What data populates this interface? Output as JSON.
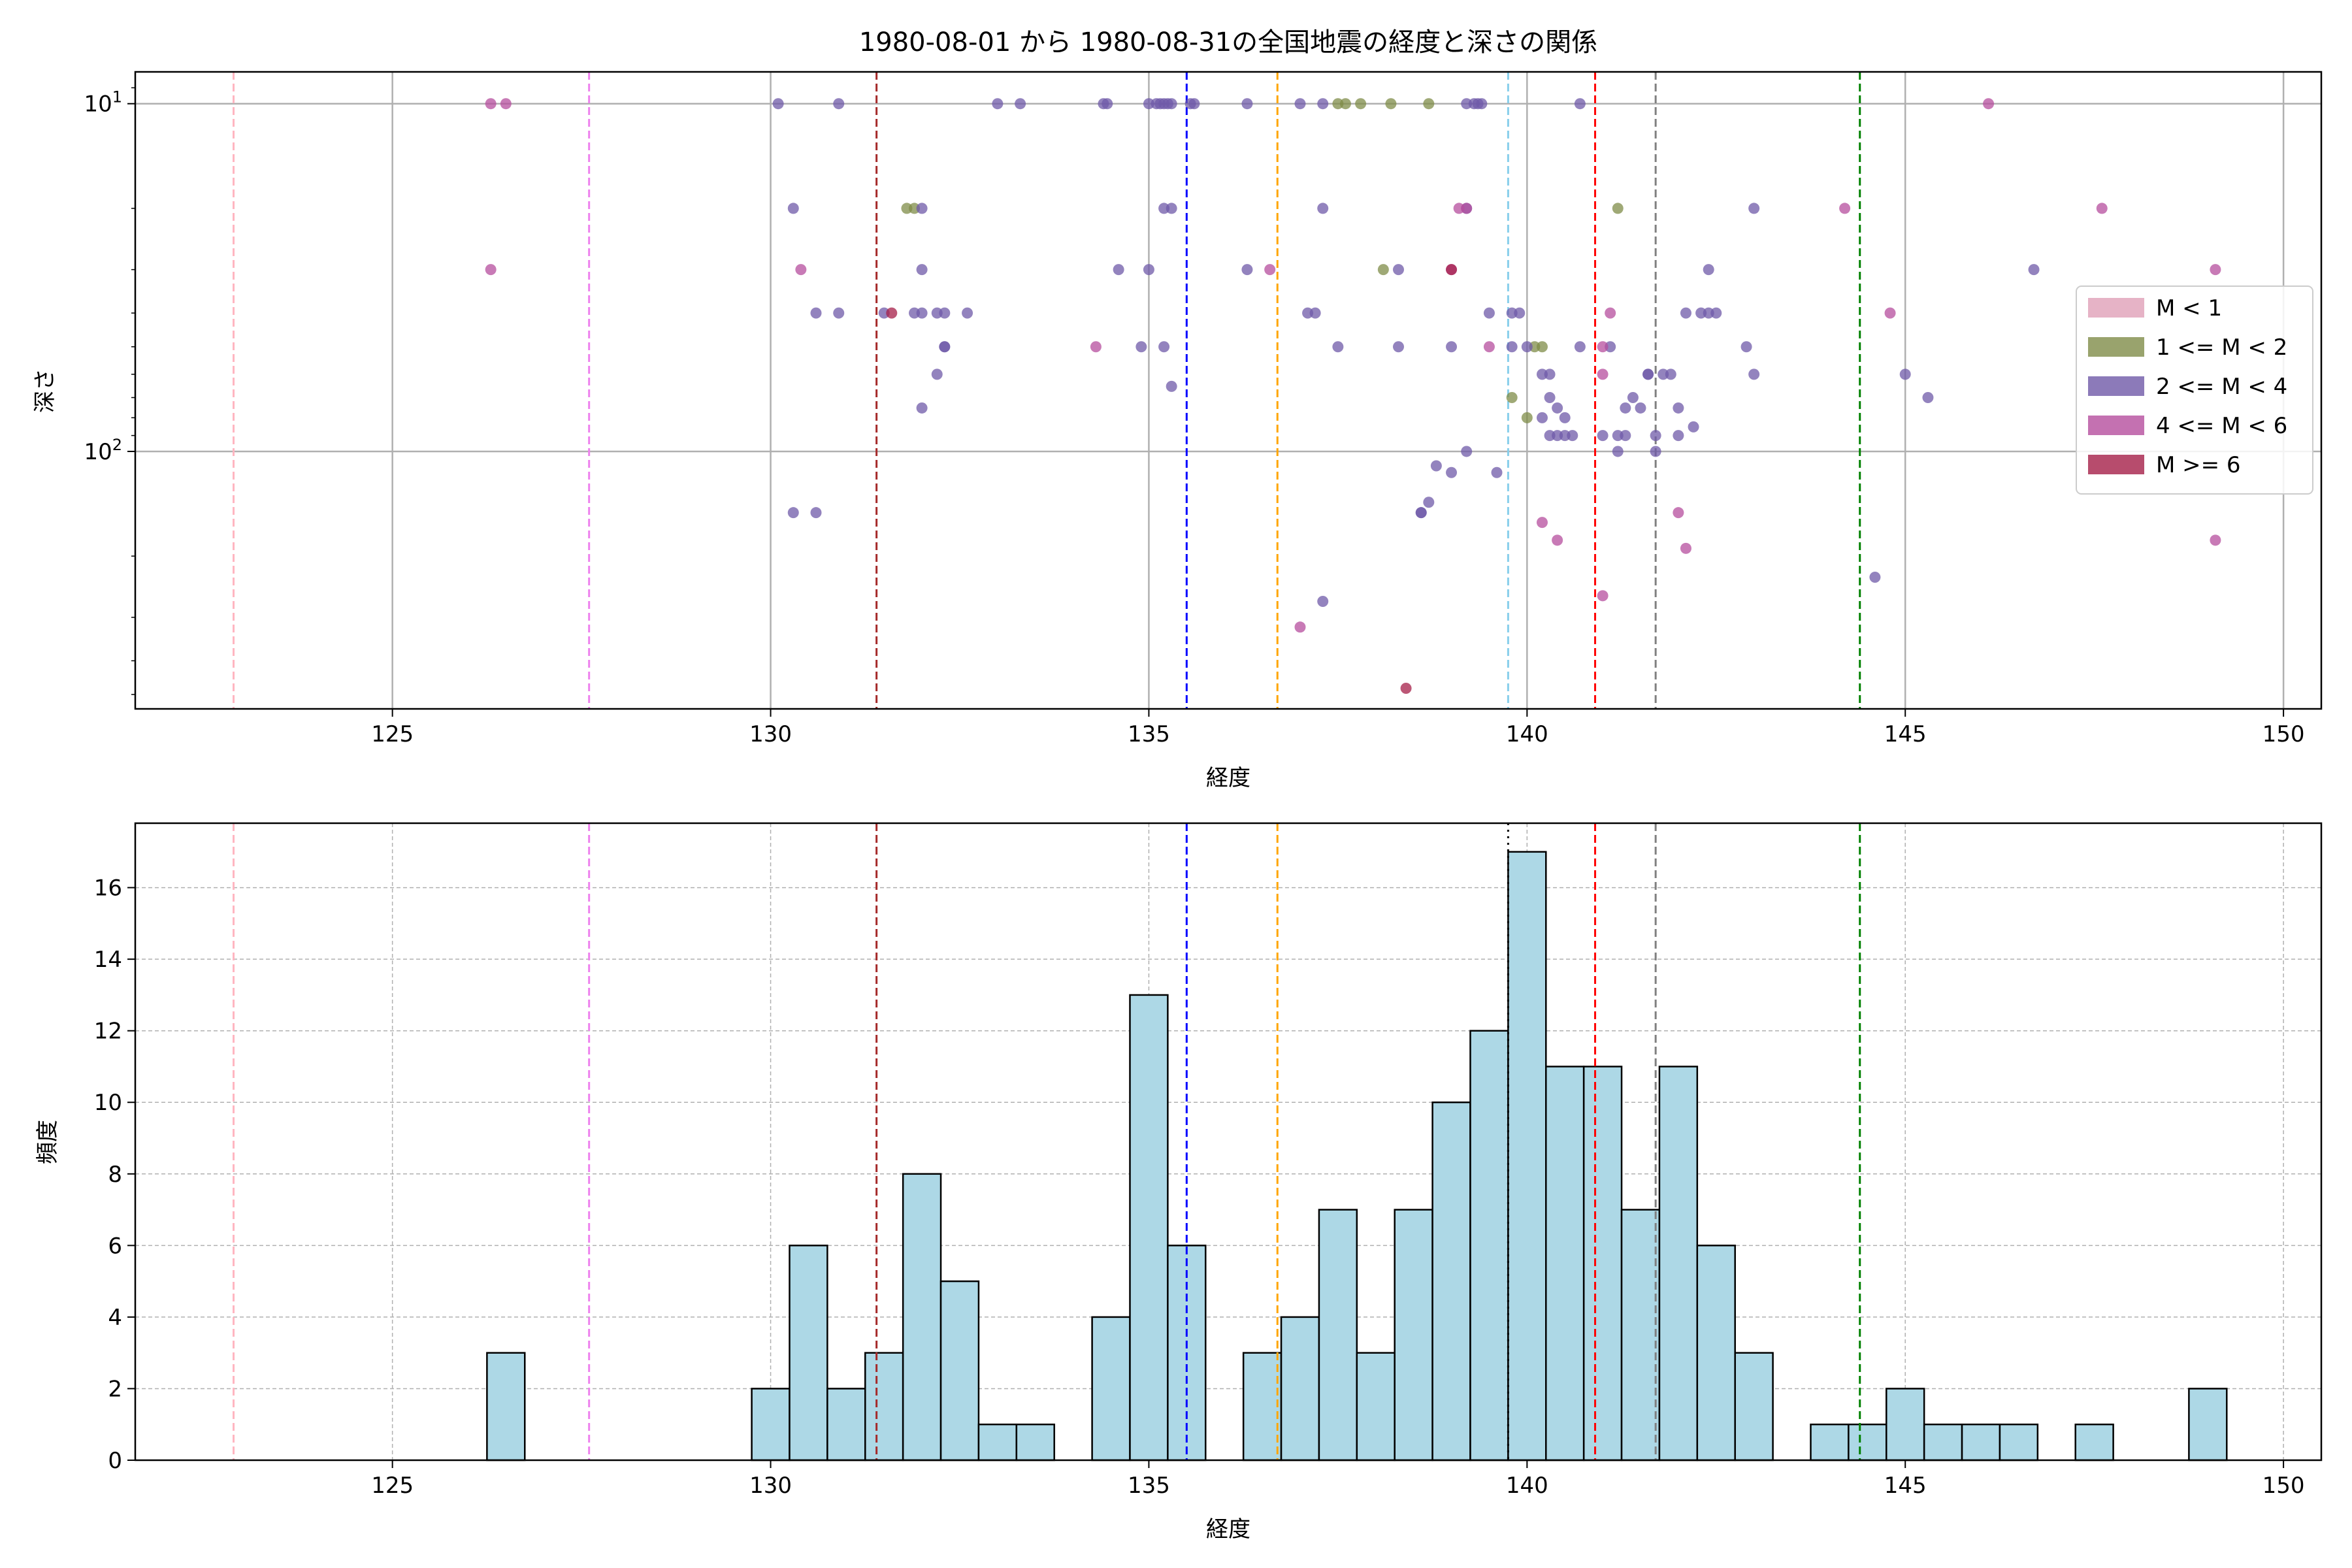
{
  "title": "1980-08-01 から 1980-08-31の全国地震の経度と深さの関係",
  "colors": {
    "mag_lt1": "#e0a0b8",
    "mag_1_2": "#7f8c48",
    "mag_2_4": "#6f59a8",
    "mag_4_6": "#b54d9e",
    "mag_ge6": "#a51f48",
    "hist_fill": "#add8e6"
  },
  "chart_data": [
    {
      "type": "scatter",
      "xlabel": "経度",
      "ylabel": "深さ",
      "xlim": [
        121.6,
        150.5
      ],
      "x_ticks": [
        125,
        130,
        135,
        140,
        145,
        150
      ],
      "x_tick_labels": [
        "125",
        "130",
        "135",
        "140",
        "145",
        "150"
      ],
      "y_scale": "log",
      "y_inverted": true,
      "ylim": [
        8.1,
        550
      ],
      "y_ticks": [
        10,
        100
      ],
      "y_tick_bases": [
        "10",
        "10"
      ],
      "y_tick_exps": [
        "1",
        "2"
      ],
      "grid": true,
      "legend_position": "center-right",
      "legend": [
        {
          "label": "M < 1",
          "color": "#e0a0b8"
        },
        {
          "label": "1 <= M < 2",
          "color": "#7f8c48"
        },
        {
          "label": "2 <= M < 4",
          "color": "#6f59a8"
        },
        {
          "label": "4 <= M < 6",
          "color": "#b54d9e"
        },
        {
          "label": "M >= 6",
          "color": "#a51f48"
        }
      ],
      "vertical_lines": [
        {
          "x": 122.9,
          "color": "#ffb6c1"
        },
        {
          "x": 127.6,
          "color": "#ee82ee"
        },
        {
          "x": 131.4,
          "color": "#a52a2a"
        },
        {
          "x": 135.5,
          "color": "#0000ff"
        },
        {
          "x": 136.7,
          "color": "#ffa500"
        },
        {
          "x": 139.75,
          "color": "#87ceeb"
        },
        {
          "x": 140.9,
          "color": "#ff0000"
        },
        {
          "x": 141.7,
          "color": "#808080"
        },
        {
          "x": 144.4,
          "color": "#008000"
        }
      ],
      "series": [
        {
          "name": "1 <= M < 2",
          "color": "#7f8c48",
          "points": [
            [
              131.8,
              20
            ],
            [
              131.9,
              20
            ],
            [
              137.5,
              10
            ],
            [
              137.6,
              10
            ],
            [
              137.8,
              10
            ],
            [
              138.2,
              10
            ],
            [
              138.7,
              10
            ],
            [
              138.1,
              30
            ],
            [
              139.8,
              70
            ],
            [
              140.2,
              50
            ],
            [
              140.0,
              80
            ],
            [
              140.1,
              50
            ],
            [
              141.2,
              20
            ]
          ]
        },
        {
          "name": "2 <= M < 4",
          "color": "#6f59a8",
          "points": [
            [
              130.1,
              10
            ],
            [
              130.9,
              10
            ],
            [
              133.0,
              10
            ],
            [
              133.3,
              10
            ],
            [
              134.4,
              10
            ],
            [
              134.45,
              10
            ],
            [
              135.0,
              10
            ],
            [
              135.1,
              10
            ],
            [
              135.15,
              10
            ],
            [
              135.2,
              10
            ],
            [
              135.25,
              10
            ],
            [
              135.3,
              10
            ],
            [
              135.55,
              10
            ],
            [
              135.6,
              10
            ],
            [
              136.3,
              10
            ],
            [
              137.0,
              10
            ],
            [
              137.3,
              10
            ],
            [
              139.2,
              10
            ],
            [
              139.3,
              10
            ],
            [
              139.35,
              10
            ],
            [
              139.4,
              10
            ],
            [
              140.7,
              10
            ],
            [
              130.3,
              20
            ],
            [
              132.0,
              20
            ],
            [
              135.2,
              20
            ],
            [
              135.3,
              20
            ],
            [
              137.3,
              20
            ],
            [
              139.2,
              20
            ],
            [
              143.0,
              20
            ],
            [
              130.6,
              40
            ],
            [
              130.9,
              40
            ],
            [
              131.5,
              40
            ],
            [
              131.9,
              40
            ],
            [
              132.0,
              40
            ],
            [
              132.2,
              40
            ],
            [
              132.3,
              40
            ],
            [
              132.6,
              40
            ],
            [
              132.0,
              30
            ],
            [
              134.6,
              30
            ],
            [
              135.0,
              30
            ],
            [
              136.3,
              30
            ],
            [
              137.1,
              40
            ],
            [
              137.2,
              40
            ],
            [
              138.3,
              30
            ],
            [
              139.5,
              40
            ],
            [
              139.8,
              40
            ],
            [
              139.9,
              40
            ],
            [
              142.4,
              40
            ],
            [
              142.5,
              40
            ],
            [
              142.3,
              40
            ],
            [
              142.1,
              40
            ],
            [
              142.4,
              30
            ],
            [
              142.9,
              50
            ],
            [
              143.0,
              60
            ],
            [
              146.7,
              30
            ],
            [
              134.9,
              50
            ],
            [
              135.2,
              50
            ],
            [
              132.2,
              60
            ],
            [
              132.3,
              50
            ],
            [
              132.3,
              50
            ],
            [
              135.3,
              65
            ],
            [
              137.5,
              50
            ],
            [
              138.3,
              50
            ],
            [
              139.0,
              50
            ],
            [
              139.8,
              50
            ],
            [
              140.0,
              50
            ],
            [
              140.2,
              60
            ],
            [
              140.3,
              60
            ],
            [
              140.3,
              70
            ],
            [
              140.4,
              75
            ],
            [
              140.5,
              80
            ],
            [
              140.5,
              90
            ],
            [
              140.7,
              50
            ],
            [
              141.1,
              50
            ],
            [
              141.4,
              70
            ],
            [
              141.6,
              60
            ],
            [
              141.8,
              60
            ],
            [
              141.3,
              75
            ],
            [
              141.5,
              75
            ],
            [
              141.6,
              60
            ],
            [
              141.9,
              60
            ],
            [
              142.0,
              75
            ],
            [
              142.2,
              85
            ],
            [
              132.0,
              75
            ],
            [
              139.2,
              100
            ],
            [
              138.8,
              110
            ],
            [
              139.0,
              115
            ],
            [
              138.6,
              150
            ],
            [
              138.7,
              140
            ],
            [
              138.6,
              150
            ],
            [
              139.6,
              115
            ],
            [
              140.3,
              90
            ],
            [
              140.2,
              80
            ],
            [
              140.4,
              90
            ],
            [
              140.6,
              90
            ],
            [
              141.2,
              90
            ],
            [
              141.3,
              90
            ],
            [
              141.0,
              90
            ],
            [
              141.2,
              100
            ],
            [
              141.7,
              100
            ],
            [
              141.7,
              90
            ],
            [
              142.0,
              90
            ],
            [
              145.0,
              60
            ],
            [
              145.3,
              70
            ],
            [
              130.3,
              150
            ],
            [
              130.6,
              150
            ],
            [
              137.3,
              270
            ],
            [
              144.6,
              230
            ]
          ]
        },
        {
          "name": "4 <= M < 6",
          "color": "#b54d9e",
          "points": [
            [
              126.3,
              10
            ],
            [
              126.5,
              10
            ],
            [
              146.1,
              10
            ],
            [
              126.3,
              30
            ],
            [
              130.4,
              30
            ],
            [
              136.6,
              30
            ],
            [
              134.3,
              50
            ],
            [
              139.0,
              30
            ],
            [
              144.2,
              20
            ],
            [
              147.6,
              20
            ],
            [
              149.1,
              30
            ],
            [
              144.8,
              40
            ],
            [
              139.1,
              20
            ],
            [
              139.2,
              20
            ],
            [
              139.5,
              50
            ],
            [
              141.1,
              40
            ],
            [
              141.0,
              50
            ],
            [
              141.0,
              60
            ],
            [
              140.2,
              160
            ],
            [
              140.4,
              180
            ],
            [
              142.0,
              150
            ],
            [
              142.1,
              190
            ],
            [
              149.1,
              180
            ],
            [
              141.0,
              260
            ],
            [
              137.0,
              320
            ]
          ]
        },
        {
          "name": "M >= 6",
          "color": "#a51f48",
          "points": [
            [
              131.6,
              40
            ],
            [
              139.0,
              30
            ],
            [
              138.4,
              480
            ]
          ]
        }
      ]
    },
    {
      "type": "bar",
      "subtype": "histogram",
      "xlabel": "経度",
      "ylabel": "頻度",
      "xlim": [
        121.6,
        150.5
      ],
      "x_ticks": [
        125,
        130,
        135,
        140,
        145,
        150
      ],
      "x_tick_labels": [
        "125",
        "130",
        "135",
        "140",
        "145",
        "150"
      ],
      "ylim": [
        0,
        17.8
      ],
      "y_ticks": [
        0,
        2,
        4,
        6,
        8,
        10,
        12,
        14,
        16
      ],
      "y_tick_labels": [
        "0",
        "2",
        "4",
        "6",
        "8",
        "10",
        "12",
        "14",
        "16"
      ],
      "grid": true,
      "bin_start": 126.25,
      "bin_width": 0.5,
      "counts": [
        3,
        0,
        0,
        0,
        0,
        0,
        0,
        2,
        6,
        2,
        3,
        8,
        5,
        1,
        1,
        0,
        4,
        13,
        6,
        0,
        3,
        4,
        7,
        3,
        7,
        10,
        12,
        17,
        11,
        11,
        7,
        11,
        6,
        3,
        0,
        1,
        1,
        2,
        1,
        1,
        1,
        0,
        1,
        0,
        0,
        2
      ],
      "vertical_lines": [
        {
          "x": 122.9,
          "color": "#ffb6c1",
          "style": "dashed"
        },
        {
          "x": 127.6,
          "color": "#ee82ee",
          "style": "dashed"
        },
        {
          "x": 131.4,
          "color": "#a52a2a",
          "style": "dashed"
        },
        {
          "x": 135.5,
          "color": "#0000ff",
          "style": "dashed"
        },
        {
          "x": 136.7,
          "color": "#ffa500",
          "style": "dashed"
        },
        {
          "x": 139.75,
          "color": "#000000",
          "style": "dotted"
        },
        {
          "x": 140.9,
          "color": "#ff0000",
          "style": "dashed"
        },
        {
          "x": 141.7,
          "color": "#808080",
          "style": "dashed"
        },
        {
          "x": 144.4,
          "color": "#008000",
          "style": "dashed"
        }
      ]
    }
  ]
}
